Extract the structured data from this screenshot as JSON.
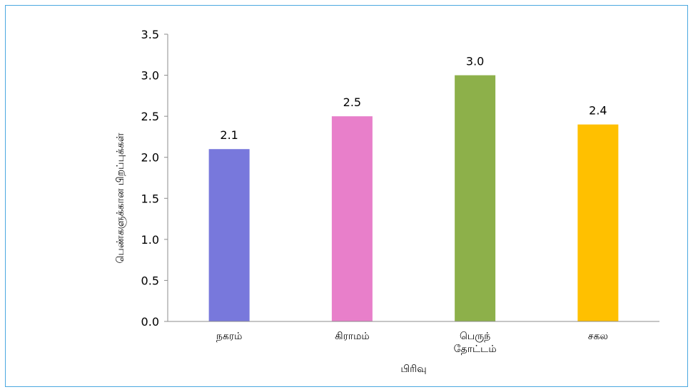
{
  "chart_data": {
    "type": "bar",
    "title": "",
    "categories": [
      [
        "நகரம்"
      ],
      [
        "கிராமம்"
      ],
      [
        "பெருந்",
        "தோட்டம்"
      ],
      [
        "சகல"
      ]
    ],
    "values": [
      2.1,
      2.5,
      3.0,
      2.4
    ],
    "data_labels": [
      "2.1",
      "2.5",
      "3.0",
      "2.4"
    ],
    "bar_colors": [
      "#7878dc",
      "#e87fca",
      "#8db04a",
      "#ffc000"
    ],
    "xlabel": "பிரிவு",
    "ylabel": "பெண்களுக்கான பிறப்புக்கள்",
    "ylim": [
      0,
      3.5
    ],
    "yticks": [
      "0.0",
      "0.5",
      "1.0",
      "1.5",
      "2.0",
      "2.5",
      "3.0",
      "3.5"
    ],
    "grid": false,
    "legend": "none"
  }
}
